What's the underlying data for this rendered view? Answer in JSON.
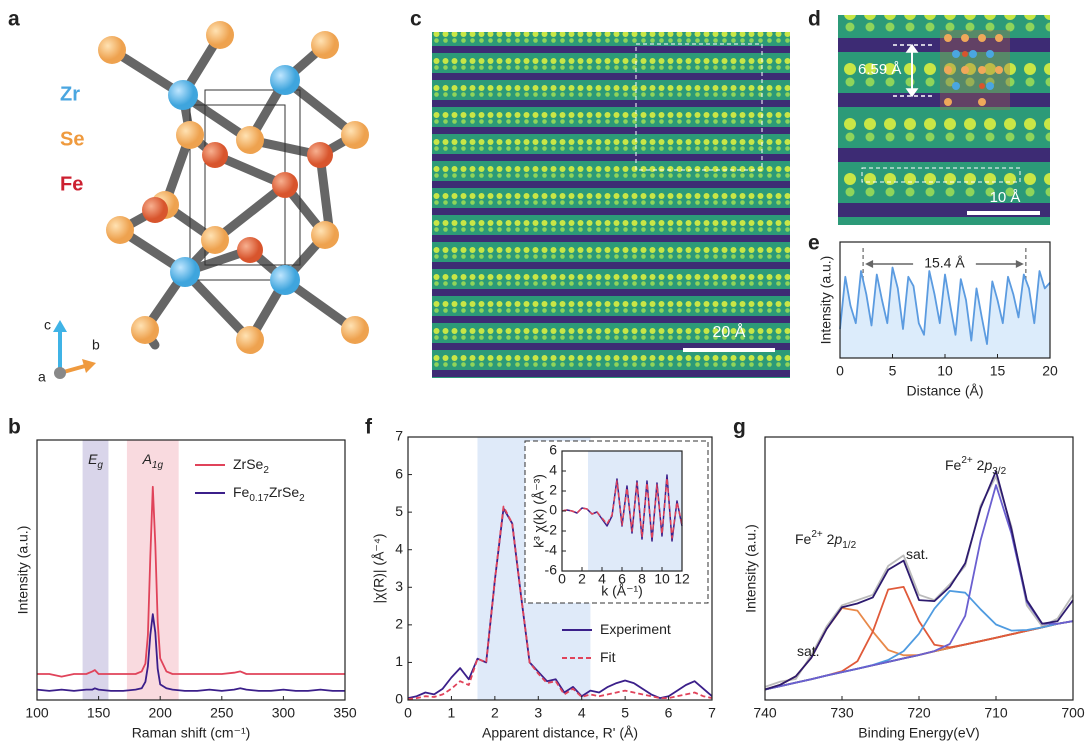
{
  "panels": {
    "a": {
      "letter": "a",
      "legend": [
        "Zr",
        "Se",
        "Fe"
      ],
      "axes": [
        "c",
        "b",
        "a"
      ]
    },
    "c": {
      "letter": "c",
      "scale_bar": "20 Å"
    },
    "d": {
      "letter": "d",
      "spacing": "6.59 Å",
      "scale_bar": "10 Å"
    }
  },
  "chart_data": [
    {
      "type": "line",
      "panel_label": "b",
      "xlabel": "Raman shift (cm⁻¹)",
      "ylabel": "Intensity (a.u.)",
      "xlim": [
        100,
        350
      ],
      "xticks": [
        100,
        150,
        200,
        250,
        300,
        350
      ],
      "ylim": [
        0,
        1
      ],
      "legend": "upper right",
      "bands": [
        {
          "label": [
            "E",
            "g"
          ],
          "range": [
            137,
            158
          ],
          "color": "#d9d5ea"
        },
        {
          "label": [
            "A",
            "1g"
          ],
          "range": [
            173,
            215
          ],
          "color": "#f9dadf"
        }
      ],
      "x": [
        100,
        110,
        120,
        130,
        140,
        145,
        147,
        150,
        160,
        170,
        180,
        185,
        188,
        190,
        192,
        194,
        196,
        198,
        200,
        205,
        210,
        220,
        230,
        240,
        250,
        260,
        265,
        270,
        280,
        290,
        300,
        310,
        320,
        330,
        340,
        350
      ],
      "series": [
        {
          "name": "ZrSe2",
          "color": "#e0435a",
          "values": [
            0.1,
            0.1,
            0.09,
            0.1,
            0.1,
            0.11,
            0.115,
            0.1,
            0.1,
            0.1,
            0.1,
            0.11,
            0.14,
            0.25,
            0.55,
            0.82,
            0.6,
            0.3,
            0.16,
            0.11,
            0.1,
            0.1,
            0.1,
            0.1,
            0.1,
            0.105,
            0.11,
            0.1,
            0.1,
            0.1,
            0.1,
            0.1,
            0.1,
            0.1,
            0.1,
            0.1
          ]
        },
        {
          "name": "Fe0.17ZrSe2",
          "color": "#3b1f8a",
          "values": [
            0.04,
            0.035,
            0.04,
            0.035,
            0.04,
            0.04,
            0.045,
            0.04,
            0.035,
            0.035,
            0.04,
            0.045,
            0.07,
            0.13,
            0.25,
            0.33,
            0.26,
            0.12,
            0.06,
            0.045,
            0.04,
            0.035,
            0.035,
            0.04,
            0.035,
            0.04,
            0.045,
            0.04,
            0.035,
            0.035,
            0.04,
            0.035,
            0.035,
            0.04,
            0.035,
            0.035
          ]
        }
      ]
    },
    {
      "type": "line",
      "panel_label": "e",
      "xlabel": "Distance (Å)",
      "ylabel": "Intensity (a.u.)",
      "xlim": [
        0,
        20
      ],
      "xticks": [
        0,
        5,
        10,
        15,
        20
      ],
      "ylim": [
        0,
        1
      ],
      "markers": [
        2.2,
        17.7
      ],
      "annotation": "15.4 Å",
      "x": [
        0,
        0.5,
        1,
        1.5,
        2,
        2.5,
        3,
        3.5,
        4,
        4.5,
        5,
        5.5,
        6,
        6.5,
        7,
        7.5,
        8,
        8.5,
        9,
        9.5,
        10,
        10.5,
        11,
        11.5,
        12,
        12.5,
        13,
        13.5,
        14,
        14.5,
        15,
        15.5,
        16,
        16.5,
        17,
        17.5,
        18,
        18.5,
        19,
        19.5,
        20
      ],
      "series": [
        {
          "color": "#5b9be0",
          "fill": "#dcecfb",
          "values": [
            0.25,
            0.7,
            0.45,
            0.3,
            0.75,
            0.55,
            0.28,
            0.72,
            0.5,
            0.3,
            0.78,
            0.6,
            0.25,
            0.7,
            0.62,
            0.3,
            0.2,
            0.75,
            0.55,
            0.3,
            0.72,
            0.45,
            0.2,
            0.68,
            0.5,
            0.15,
            0.6,
            0.35,
            0.12,
            0.66,
            0.5,
            0.3,
            0.7,
            0.55,
            0.35,
            0.72,
            0.6,
            0.3,
            0.75,
            0.6,
            0.65
          ]
        }
      ]
    },
    {
      "type": "line",
      "panel_label": "f",
      "xlabel": "Apparent distance, R' (Å)",
      "ylabel": "|χ(R)| (Å⁻⁴)",
      "xlim": [
        0,
        7
      ],
      "xticks": [
        0,
        1,
        2,
        3,
        4,
        5,
        6,
        7
      ],
      "ylim": [
        0,
        7
      ],
      "yticks": [
        0,
        1,
        2,
        3,
        4,
        5,
        6,
        7
      ],
      "legend": "lower right",
      "bands": [
        {
          "range": [
            1.6,
            4.2
          ],
          "color": "#dfeaf9"
        }
      ],
      "x": [
        0,
        0.2,
        0.4,
        0.6,
        0.8,
        1,
        1.2,
        1.4,
        1.6,
        1.8,
        2,
        2.2,
        2.4,
        2.6,
        2.8,
        3,
        3.2,
        3.4,
        3.6,
        3.8,
        4,
        4.2,
        4.4,
        4.6,
        4.8,
        5,
        5.2,
        5.4,
        5.6,
        5.8,
        6,
        6.2,
        6.4,
        6.6,
        6.8,
        7
      ],
      "series": [
        {
          "name": "Experiment",
          "color": "#3b1f8a",
          "values": [
            0.05,
            0.1,
            0.2,
            0.15,
            0.3,
            0.6,
            0.85,
            0.55,
            1.1,
            1.0,
            3.2,
            5.1,
            4.7,
            2.8,
            1.0,
            0.75,
            0.5,
            0.55,
            0.2,
            0.35,
            0.1,
            0.25,
            0.2,
            0.35,
            0.45,
            0.52,
            0.45,
            0.3,
            0.15,
            0.05,
            0.1,
            0.25,
            0.4,
            0.5,
            0.3,
            0.1
          ]
        },
        {
          "name": "Fit",
          "color": "#e0435a",
          "dashed": true,
          "values": [
            0.02,
            0.05,
            0.1,
            0.08,
            0.15,
            0.3,
            0.5,
            0.4,
            1.1,
            1.0,
            3.2,
            5.15,
            4.7,
            2.8,
            1.0,
            0.7,
            0.45,
            0.5,
            0.15,
            0.3,
            0.08,
            0.15,
            0.1,
            0.15,
            0.2,
            0.25,
            0.2,
            0.15,
            0.1,
            0.05,
            0.05,
            0.1,
            0.15,
            0.2,
            0.1,
            0.05
          ]
        }
      ],
      "inset": {
        "xlabel": "k (Å⁻¹)",
        "ylabel": "k³ χ(k) (Å⁻³)",
        "xlim": [
          0,
          12
        ],
        "xticks": [
          0,
          2,
          4,
          6,
          8,
          10,
          12
        ],
        "ylim": [
          -6,
          6
        ],
        "yticks": [
          -6,
          -4,
          -2,
          0,
          2,
          4,
          6
        ],
        "bands": [
          {
            "range": [
              2.6,
              12
            ],
            "color": "#dfeaf9"
          }
        ],
        "x": [
          0,
          0.5,
          1,
          1.5,
          2,
          2.5,
          3,
          3.5,
          4,
          4.5,
          5,
          5.5,
          6,
          6.5,
          7,
          7.5,
          8,
          8.5,
          9,
          9.5,
          10,
          10.5,
          11,
          11.5,
          12
        ],
        "series": [
          {
            "color": "#3b1f8a",
            "values": [
              0,
              0.1,
              0,
              -0.2,
              0.3,
              0.2,
              -0.3,
              -0.1,
              -0.8,
              -1.5,
              -0.5,
              3.2,
              -1.5,
              2.5,
              -2.2,
              3.0,
              -2.8,
              3.0,
              -3.0,
              2.8,
              -2.5,
              3.6,
              -3.0,
              1.0,
              -1.5
            ]
          },
          {
            "color": "#e0435a",
            "dashed": true,
            "values": [
              0,
              0.1,
              0,
              -0.2,
              0.3,
              0.2,
              -0.3,
              -0.1,
              -0.7,
              -1.3,
              -0.4,
              3.0,
              -1.4,
              2.3,
              -2.0,
              2.8,
              -2.6,
              2.8,
              -2.8,
              2.6,
              -2.3,
              3.3,
              -2.7,
              0.9,
              -1.3
            ]
          }
        ]
      }
    },
    {
      "type": "line",
      "panel_label": "g",
      "xlabel": "Binding Energy(eV)",
      "ylabel": "Intensity (a.u.)",
      "xlim": [
        740,
        700
      ],
      "xticks": [
        740,
        730,
        720,
        710,
        700
      ],
      "ylim": [
        0,
        1
      ],
      "annotations": [
        [
          "sat."
        ],
        [
          "Fe",
          "2+",
          " 2",
          "p",
          "1/2"
        ],
        [
          "sat."
        ],
        [
          "Fe",
          "2+",
          " 2",
          "p",
          "3/2"
        ]
      ],
      "x": [
        740,
        738,
        736,
        734,
        732,
        730,
        728,
        726,
        724,
        722,
        720,
        718,
        716,
        714,
        712,
        710,
        708,
        706,
        704,
        702,
        700
      ],
      "series": [
        {
          "color": "#bbbbbb",
          "values": [
            0.05,
            0.07,
            0.08,
            0.17,
            0.28,
            0.36,
            0.38,
            0.4,
            0.51,
            0.55,
            0.4,
            0.38,
            0.44,
            0.51,
            0.74,
            0.85,
            0.66,
            0.36,
            0.28,
            0.31,
            0.4
          ]
        },
        {
          "color": "#111111",
          "values": [
            0.04,
            0.053,
            0.066,
            0.079,
            0.093,
            0.106,
            0.119,
            0.132,
            0.145,
            0.158,
            0.171,
            0.185,
            0.198,
            0.211,
            0.224,
            0.237,
            0.25,
            0.263,
            0.276,
            0.29,
            0.3
          ]
        },
        {
          "color": "#e8894a",
          "values": [
            0.04,
            0.058,
            0.09,
            0.16,
            0.27,
            0.35,
            0.34,
            0.26,
            0.19,
            0.17,
            0.171,
            0.185,
            0.198,
            0.211,
            0.224,
            0.237,
            0.25,
            0.263,
            0.276,
            0.29,
            0.3
          ]
        },
        {
          "color": "#e05a3a",
          "values": [
            0.04,
            0.053,
            0.066,
            0.079,
            0.093,
            0.109,
            0.147,
            0.26,
            0.42,
            0.43,
            0.3,
            0.21,
            0.2,
            0.211,
            0.224,
            0.237,
            0.25,
            0.263,
            0.276,
            0.29,
            0.3
          ]
        },
        {
          "color": "#4f9be0",
          "values": [
            0.04,
            0.053,
            0.066,
            0.079,
            0.093,
            0.106,
            0.119,
            0.133,
            0.152,
            0.186,
            0.252,
            0.347,
            0.415,
            0.408,
            0.345,
            0.287,
            0.264,
            0.266,
            0.276,
            0.29,
            0.3
          ]
        },
        {
          "color": "#6a5fd0",
          "values": [
            0.04,
            0.053,
            0.066,
            0.079,
            0.093,
            0.106,
            0.119,
            0.132,
            0.145,
            0.158,
            0.171,
            0.186,
            0.213,
            0.32,
            0.607,
            0.817,
            0.633,
            0.373,
            0.29,
            0.29,
            0.3
          ]
        },
        {
          "color": "#2d1b6e",
          "values": [
            0.04,
            0.058,
            0.09,
            0.16,
            0.27,
            0.353,
            0.367,
            0.39,
            0.495,
            0.53,
            0.38,
            0.376,
            0.43,
            0.52,
            0.73,
            0.87,
            0.65,
            0.38,
            0.29,
            0.3,
            0.38
          ]
        }
      ]
    }
  ]
}
